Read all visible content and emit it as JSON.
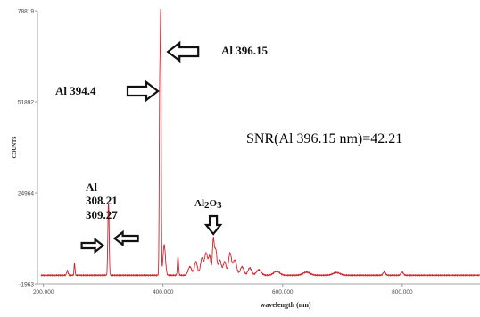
{
  "chart_data": {
    "type": "line",
    "title": "",
    "xlabel": "wavelength (nm)",
    "ylabel": "COUNTS",
    "xlim": [
      190,
      930
    ],
    "ylim": [
      -1963,
      78819
    ],
    "x_ticks": [
      200,
      400,
      600,
      800
    ],
    "x_tick_labels": [
      "200.000",
      "400.000",
      "600.000",
      "800.000"
    ],
    "y_ticks": [
      -1963,
      24964,
      51892,
      78819
    ],
    "y_tick_labels": [
      "-1963",
      "24964",
      "51892",
      "78819"
    ],
    "grid": false,
    "series_color": "#d2202a",
    "baseline": 600,
    "peaks": [
      {
        "x": 240,
        "y": 1400,
        "w": 1.2
      },
      {
        "x": 252,
        "y": 3500,
        "w": 0.8
      },
      {
        "x": 308.21,
        "y": 11800,
        "w": 0.9
      },
      {
        "x": 309.27,
        "y": 13500,
        "w": 0.9
      },
      {
        "x": 394.4,
        "y": 51800,
        "w": 0.8
      },
      {
        "x": 396.15,
        "y": 73000,
        "w": 0.8
      },
      {
        "x": 402,
        "y": 9000,
        "w": 2.0
      },
      {
        "x": 425,
        "y": 5500,
        "w": 1.0
      },
      {
        "x": 445,
        "y": 2500,
        "w": 3.0
      },
      {
        "x": 455,
        "y": 4000,
        "w": 2.5
      },
      {
        "x": 465,
        "y": 5000,
        "w": 2.5
      },
      {
        "x": 472,
        "y": 6500,
        "w": 2.5
      },
      {
        "x": 478,
        "y": 5500,
        "w": 2.0
      },
      {
        "x": 484,
        "y": 10000,
        "w": 1.5
      },
      {
        "x": 488,
        "y": 7500,
        "w": 2.0
      },
      {
        "x": 495,
        "y": 4500,
        "w": 2.5
      },
      {
        "x": 503,
        "y": 4000,
        "w": 2.5
      },
      {
        "x": 512,
        "y": 6500,
        "w": 2.5
      },
      {
        "x": 520,
        "y": 4500,
        "w": 3.0
      },
      {
        "x": 532,
        "y": 2500,
        "w": 3.0
      },
      {
        "x": 545,
        "y": 2200,
        "w": 3.0
      },
      {
        "x": 560,
        "y": 1600,
        "w": 4.0
      },
      {
        "x": 590,
        "y": 1200,
        "w": 5.0
      },
      {
        "x": 640,
        "y": 900,
        "w": 6.0
      },
      {
        "x": 690,
        "y": 800,
        "w": 6.0
      },
      {
        "x": 770,
        "y": 1000,
        "w": 2.0
      },
      {
        "x": 800,
        "y": 900,
        "w": 2.0
      }
    ],
    "annotations": [
      {
        "id": "al-396",
        "lines": [
          "Al 396.15"
        ],
        "arrow": "left",
        "target_x": 396.15,
        "target_y": 70500
      },
      {
        "id": "al-394",
        "lines": [
          "Al 394.4"
        ],
        "arrow": "right",
        "target_x": 394.4,
        "target_y": 51800
      },
      {
        "id": "al-308",
        "lines": [
          "Al",
          "308.21",
          "309.27"
        ],
        "arrow": "both",
        "target_x": 308.7,
        "target_y": 11500
      },
      {
        "id": "alo",
        "lines": [
          "AlO"
        ],
        "arrow": "down",
        "target_x": 484,
        "target_y": 12500
      }
    ],
    "snr": {
      "main": "SNR",
      "detail": "(Al 396.15 nm)",
      "value": "=42.21"
    }
  }
}
